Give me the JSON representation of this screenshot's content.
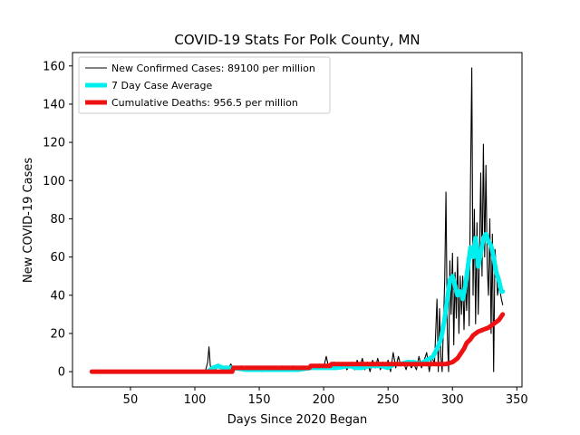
{
  "chart_data": {
    "type": "line",
    "title": "COVID-19 Stats For Polk County, MN",
    "xlabel": "Days Since 2020 Began",
    "ylabel": "New COVID-19 Cases",
    "xlim": [
      5,
      354
    ],
    "ylim": [
      -8,
      167
    ],
    "xticks": [
      50,
      100,
      150,
      200,
      250,
      300,
      350
    ],
    "yticks": [
      0,
      20,
      40,
      60,
      80,
      100,
      120,
      140,
      160
    ],
    "grid": false,
    "legend_position": "top-left",
    "series": [
      {
        "name": "New Confirmed Cases: 89100 per million",
        "color": "#000000",
        "style": "thin",
        "points": [
          [
            20,
            0
          ],
          [
            108,
            0
          ],
          [
            110,
            5
          ],
          [
            111,
            13
          ],
          [
            112,
            3
          ],
          [
            114,
            0
          ],
          [
            116,
            1
          ],
          [
            118,
            4
          ],
          [
            120,
            2
          ],
          [
            122,
            1
          ],
          [
            124,
            3
          ],
          [
            126,
            2
          ],
          [
            128,
            4
          ],
          [
            130,
            1
          ],
          [
            132,
            2
          ],
          [
            134,
            2
          ],
          [
            136,
            3
          ],
          [
            140,
            2
          ],
          [
            144,
            2
          ],
          [
            148,
            1
          ],
          [
            152,
            0
          ],
          [
            156,
            1
          ],
          [
            160,
            2
          ],
          [
            164,
            1
          ],
          [
            168,
            3
          ],
          [
            172,
            1
          ],
          [
            176,
            3
          ],
          [
            180,
            2
          ],
          [
            184,
            3
          ],
          [
            188,
            1
          ],
          [
            192,
            2
          ],
          [
            196,
            3
          ],
          [
            200,
            2
          ],
          [
            202,
            8
          ],
          [
            204,
            2
          ],
          [
            208,
            5
          ],
          [
            212,
            2
          ],
          [
            216,
            4
          ],
          [
            218,
            1
          ],
          [
            220,
            3
          ],
          [
            222,
            5
          ],
          [
            224,
            1
          ],
          [
            226,
            6
          ],
          [
            228,
            2
          ],
          [
            230,
            7
          ],
          [
            232,
            1
          ],
          [
            234,
            5
          ],
          [
            236,
            0
          ],
          [
            238,
            6
          ],
          [
            240,
            2
          ],
          [
            242,
            7
          ],
          [
            244,
            1
          ],
          [
            246,
            5
          ],
          [
            248,
            2
          ],
          [
            250,
            6
          ],
          [
            252,
            0
          ],
          [
            254,
            10
          ],
          [
            256,
            2
          ],
          [
            258,
            8
          ],
          [
            260,
            3
          ],
          [
            262,
            5
          ],
          [
            264,
            1
          ],
          [
            266,
            6
          ],
          [
            268,
            2
          ],
          [
            270,
            4
          ],
          [
            272,
            1
          ],
          [
            274,
            8
          ],
          [
            276,
            2
          ],
          [
            278,
            6
          ],
          [
            280,
            10
          ],
          [
            282,
            0
          ],
          [
            284,
            8
          ],
          [
            286,
            4
          ],
          [
            288,
            38
          ],
          [
            289,
            0
          ],
          [
            290,
            33
          ],
          [
            291,
            8
          ],
          [
            292,
            0
          ],
          [
            294,
            48
          ],
          [
            295,
            94
          ],
          [
            296,
            20
          ],
          [
            297,
            0
          ],
          [
            298,
            58
          ],
          [
            299,
            30
          ],
          [
            300,
            62
          ],
          [
            301,
            14
          ],
          [
            302,
            52
          ],
          [
            303,
            28
          ],
          [
            304,
            60
          ],
          [
            305,
            20
          ],
          [
            306,
            50
          ],
          [
            307,
            30
          ],
          [
            308,
            50
          ],
          [
            309,
            22
          ],
          [
            310,
            48
          ],
          [
            311,
            32
          ],
          [
            312,
            60
          ],
          [
            313,
            24
          ],
          [
            314,
            100
          ],
          [
            315,
            159
          ],
          [
            316,
            40
          ],
          [
            317,
            85
          ],
          [
            318,
            25
          ],
          [
            319,
            78
          ],
          [
            320,
            30
          ],
          [
            321,
            62
          ],
          [
            322,
            104
          ],
          [
            323,
            50
          ],
          [
            324,
            119
          ],
          [
            325,
            60
          ],
          [
            326,
            108
          ],
          [
            327,
            56
          ],
          [
            328,
            40
          ],
          [
            329,
            80
          ],
          [
            330,
            20
          ],
          [
            331,
            72
          ],
          [
            332,
            0
          ],
          [
            333,
            64
          ],
          [
            334,
            55
          ],
          [
            335,
            40
          ],
          [
            336,
            45
          ],
          [
            337,
            42
          ],
          [
            338,
            38
          ],
          [
            339,
            35
          ]
        ]
      },
      {
        "name": "7 Day Case Average",
        "color": "#00eeee",
        "style": "thick",
        "points": [
          [
            110,
            0
          ],
          [
            114,
            2
          ],
          [
            118,
            3
          ],
          [
            122,
            2
          ],
          [
            126,
            2
          ],
          [
            130,
            2
          ],
          [
            140,
            1
          ],
          [
            150,
            1
          ],
          [
            160,
            1
          ],
          [
            170,
            1
          ],
          [
            180,
            1
          ],
          [
            190,
            2
          ],
          [
            200,
            2
          ],
          [
            210,
            2
          ],
          [
            220,
            3
          ],
          [
            225,
            2
          ],
          [
            230,
            2
          ],
          [
            235,
            3
          ],
          [
            240,
            3
          ],
          [
            245,
            3
          ],
          [
            250,
            2
          ],
          [
            255,
            4
          ],
          [
            260,
            4
          ],
          [
            265,
            5
          ],
          [
            270,
            5
          ],
          [
            275,
            4
          ],
          [
            280,
            6
          ],
          [
            285,
            8
          ],
          [
            288,
            12
          ],
          [
            290,
            15
          ],
          [
            292,
            20
          ],
          [
            294,
            28
          ],
          [
            296,
            38
          ],
          [
            298,
            48
          ],
          [
            300,
            50
          ],
          [
            302,
            45
          ],
          [
            304,
            40
          ],
          [
            306,
            42
          ],
          [
            308,
            38
          ],
          [
            310,
            45
          ],
          [
            312,
            55
          ],
          [
            314,
            65
          ],
          [
            316,
            60
          ],
          [
            318,
            70
          ],
          [
            320,
            55
          ],
          [
            322,
            62
          ],
          [
            324,
            70
          ],
          [
            326,
            72
          ],
          [
            328,
            68
          ],
          [
            330,
            66
          ],
          [
            332,
            60
          ],
          [
            334,
            52
          ],
          [
            336,
            48
          ],
          [
            338,
            42
          ],
          [
            339,
            42
          ]
        ]
      },
      {
        "name": "Cumulative Deaths: 956.5 per million",
        "color": "#ee1111",
        "style": "thick",
        "points": [
          [
            20,
            0
          ],
          [
            60,
            0
          ],
          [
            100,
            0
          ],
          [
            120,
            0
          ],
          [
            129,
            0
          ],
          [
            130,
            2
          ],
          [
            140,
            2
          ],
          [
            150,
            2
          ],
          [
            160,
            2
          ],
          [
            170,
            2
          ],
          [
            180,
            2
          ],
          [
            189,
            2
          ],
          [
            190,
            3
          ],
          [
            200,
            3
          ],
          [
            205,
            3
          ],
          [
            206,
            4
          ],
          [
            220,
            4
          ],
          [
            240,
            4
          ],
          [
            260,
            4
          ],
          [
            280,
            4
          ],
          [
            295,
            4
          ],
          [
            300,
            5
          ],
          [
            304,
            7
          ],
          [
            307,
            10
          ],
          [
            309,
            12
          ],
          [
            311,
            15
          ],
          [
            314,
            17
          ],
          [
            316,
            19
          ],
          [
            318,
            20
          ],
          [
            320,
            21
          ],
          [
            324,
            22
          ],
          [
            328,
            23
          ],
          [
            332,
            25
          ],
          [
            336,
            27
          ],
          [
            338,
            29
          ],
          [
            339,
            30
          ]
        ]
      }
    ]
  }
}
